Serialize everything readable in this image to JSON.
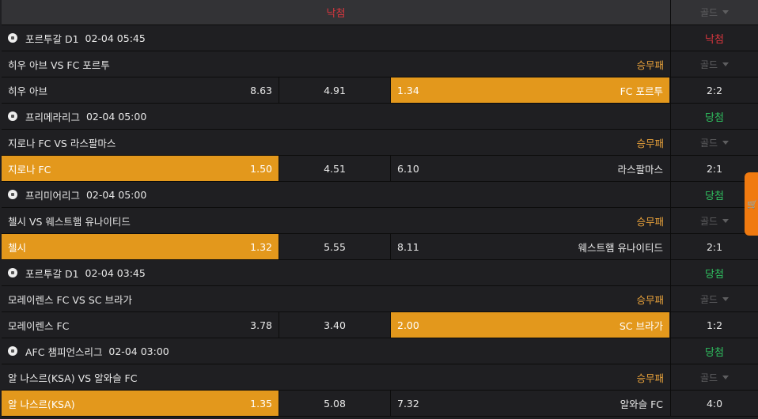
{
  "header": {
    "status": "낙첨",
    "gold": "골드"
  },
  "colors": {
    "accent": "#e3981c",
    "lose": "#d9363e",
    "win": "#2fbf5f"
  },
  "matches": [
    {
      "league": "포르투갈 D1",
      "time": "02-04 05:45",
      "result": "낙첨",
      "result_type": "lose",
      "title": "히우 아브 VS FC 포르투",
      "bet_type": "승무패",
      "gold": "골드",
      "home": "히우 아브",
      "home_odds": "8.63",
      "draw_odds": "4.91",
      "away_odds": "1.34",
      "away": "FC 포르투",
      "selected": "away",
      "score": "2:2"
    },
    {
      "league": "프리메라리그",
      "time": "02-04 05:00",
      "result": "당첨",
      "result_type": "win",
      "title": "지로나 FC VS 라스팔마스",
      "bet_type": "승무패",
      "gold": "골드",
      "home": "지로나 FC",
      "home_odds": "1.50",
      "draw_odds": "4.51",
      "away_odds": "6.10",
      "away": "라스팔마스",
      "selected": "home",
      "score": "2:1"
    },
    {
      "league": "프리미어리그",
      "time": "02-04 05:00",
      "result": "당첨",
      "result_type": "win",
      "title": "첼시 VS 웨스트햄 유나이티드",
      "bet_type": "승무패",
      "gold": "골드",
      "home": "첼시",
      "home_odds": "1.32",
      "draw_odds": "5.55",
      "away_odds": "8.11",
      "away": "웨스트햄 유나이티드",
      "selected": "home",
      "score": "2:1"
    },
    {
      "league": "포르투갈 D1",
      "time": "02-04 03:45",
      "result": "당첨",
      "result_type": "win",
      "title": "모레이렌스 FC VS SC 브라가",
      "bet_type": "승무패",
      "gold": "골드",
      "home": "모레이렌스 FC",
      "home_odds": "3.78",
      "draw_odds": "3.40",
      "away_odds": "2.00",
      "away": "SC 브라가",
      "selected": "away",
      "score": "1:2"
    },
    {
      "league": "AFC 챔피언스리그",
      "time": "02-04 03:00",
      "result": "당첨",
      "result_type": "win",
      "title": "알 나스르(KSA) VS 알와슬 FC",
      "bet_type": "승무패",
      "gold": "골드",
      "home": "알 나스르(KSA)",
      "home_odds": "1.35",
      "draw_odds": "5.08",
      "away_odds": "7.32",
      "away": "알와슬 FC",
      "selected": "home",
      "score": "4:0"
    }
  ],
  "cart": {
    "icon": "cart-icon"
  }
}
